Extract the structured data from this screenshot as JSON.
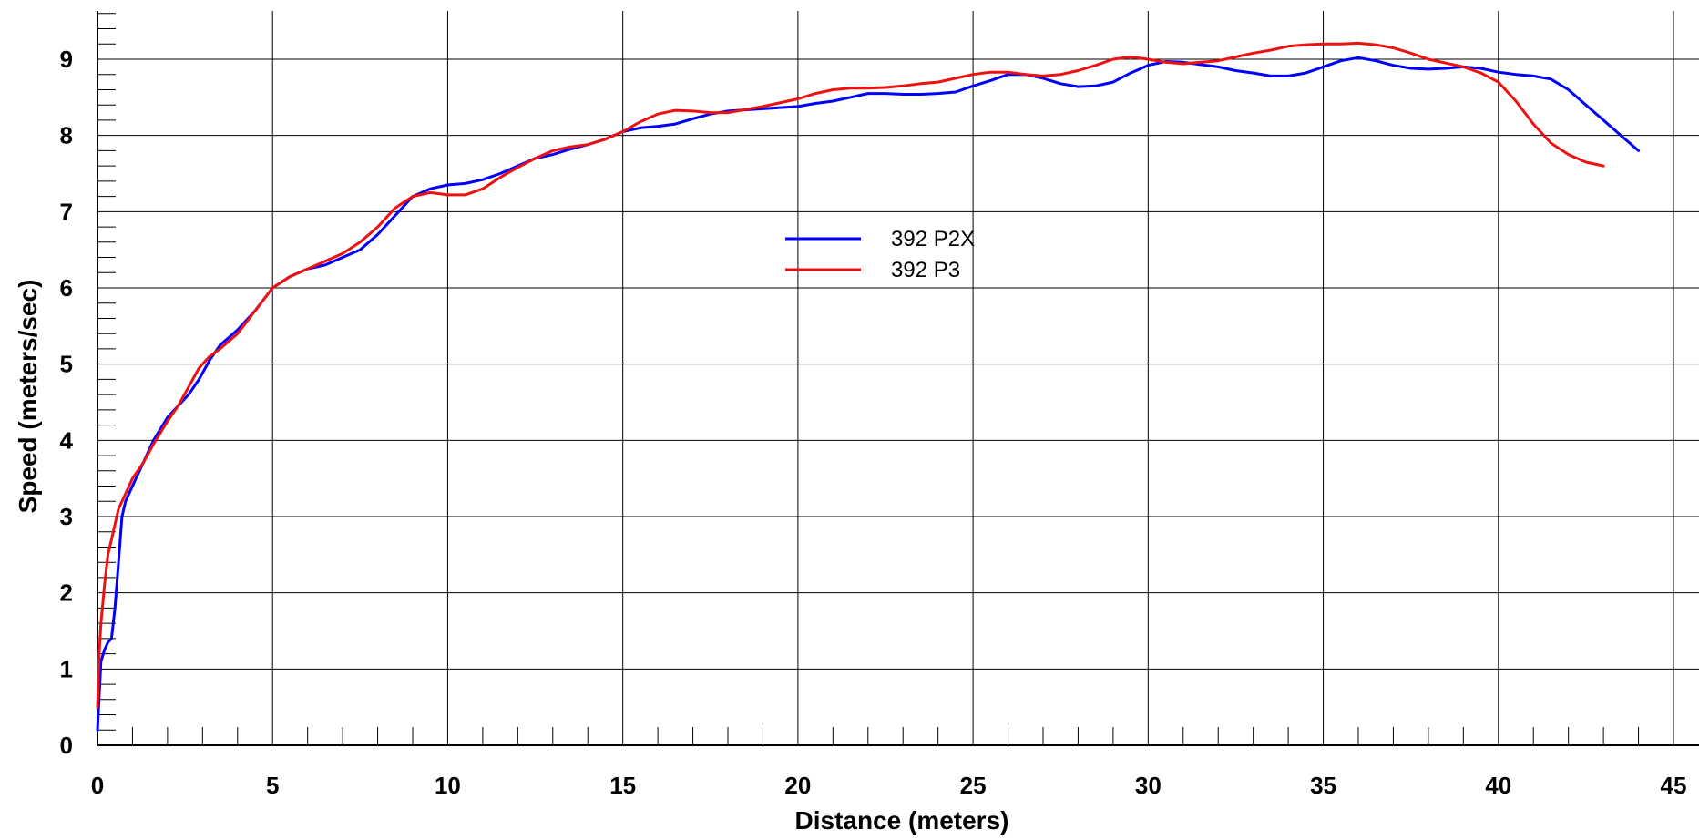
{
  "chart_data": {
    "type": "line",
    "title": "",
    "xlabel": "Distance (meters)",
    "ylabel": "Speed (meters/sec)",
    "xlim": [
      0,
      45
    ],
    "ylim": [
      0,
      9
    ],
    "x_ticks": [
      0,
      5,
      10,
      15,
      20,
      25,
      30,
      35,
      40,
      45
    ],
    "y_ticks": [
      0,
      1,
      2,
      3,
      4,
      5,
      6,
      7,
      8,
      9
    ],
    "grid": true,
    "legend_position": "center",
    "series": [
      {
        "name": "392 P2X",
        "color": "#0000ff",
        "x": [
          0,
          0.1,
          0.2,
          0.3,
          0.4,
          0.5,
          0.6,
          0.7,
          0.8,
          1.0,
          1.3,
          1.6,
          2.0,
          2.3,
          2.6,
          2.9,
          3.2,
          3.5,
          4.0,
          4.5,
          5.0,
          5.5,
          6.0,
          6.5,
          7.0,
          7.5,
          8.0,
          8.5,
          9.0,
          9.5,
          10.0,
          10.5,
          11.0,
          11.5,
          12.0,
          12.5,
          13.0,
          13.5,
          14.0,
          14.5,
          15.0,
          15.5,
          16.0,
          16.5,
          17.0,
          17.5,
          18.0,
          19.0,
          20.0,
          20.5,
          21.0,
          21.5,
          22.0,
          22.5,
          23.0,
          23.5,
          24.0,
          24.5,
          25.0,
          25.5,
          26.0,
          26.5,
          27.0,
          27.5,
          28.0,
          28.5,
          29.0,
          29.5,
          30.0,
          30.5,
          31.0,
          31.5,
          32.0,
          32.5,
          33.0,
          33.5,
          34.0,
          34.5,
          35.0,
          35.5,
          36.0,
          36.5,
          37.0,
          37.5,
          38.0,
          38.5,
          39.0,
          39.5,
          40.0,
          40.5,
          41.0,
          41.5,
          42.0,
          42.5,
          43.0,
          43.5,
          44.0
        ],
        "y": [
          0.2,
          1.1,
          1.25,
          1.35,
          1.4,
          1.8,
          2.4,
          3.0,
          3.2,
          3.4,
          3.7,
          4.0,
          4.3,
          4.45,
          4.6,
          4.8,
          5.05,
          5.25,
          5.45,
          5.7,
          6.0,
          6.15,
          6.25,
          6.3,
          6.4,
          6.5,
          6.7,
          6.95,
          7.2,
          7.3,
          7.35,
          7.37,
          7.42,
          7.5,
          7.6,
          7.7,
          7.75,
          7.82,
          7.88,
          7.95,
          8.05,
          8.1,
          8.12,
          8.15,
          8.22,
          8.28,
          8.32,
          8.35,
          8.38,
          8.42,
          8.45,
          8.5,
          8.55,
          8.55,
          8.54,
          8.54,
          8.55,
          8.57,
          8.65,
          8.72,
          8.8,
          8.8,
          8.75,
          8.68,
          8.64,
          8.65,
          8.7,
          8.82,
          8.92,
          8.97,
          8.96,
          8.93,
          8.9,
          8.85,
          8.82,
          8.78,
          8.78,
          8.82,
          8.9,
          8.98,
          9.02,
          8.98,
          8.92,
          8.88,
          8.87,
          8.88,
          8.9,
          8.88,
          8.83,
          8.8,
          8.78,
          8.74,
          8.6,
          8.4,
          8.2,
          8.0,
          7.8
        ]
      },
      {
        "name": "392 P3",
        "color": "#ee1111",
        "x": [
          0,
          0.05,
          0.1,
          0.2,
          0.3,
          0.4,
          0.5,
          0.6,
          0.8,
          1.0,
          1.3,
          1.6,
          2.0,
          2.3,
          2.6,
          2.9,
          3.2,
          3.5,
          4.0,
          4.5,
          5.0,
          5.5,
          6.0,
          6.5,
          7.0,
          7.5,
          8.0,
          8.5,
          9.0,
          9.5,
          10.0,
          10.5,
          11.0,
          11.5,
          12.0,
          12.5,
          13.0,
          13.5,
          14.0,
          14.5,
          15.0,
          15.5,
          16.0,
          16.5,
          17.0,
          17.5,
          18.0,
          19.0,
          20.0,
          20.5,
          21.0,
          21.5,
          22.0,
          22.5,
          23.0,
          23.5,
          24.0,
          24.5,
          25.0,
          25.5,
          26.0,
          26.5,
          27.0,
          27.5,
          28.0,
          28.5,
          29.0,
          29.5,
          30.0,
          30.5,
          31.0,
          31.5,
          32.0,
          32.5,
          33.0,
          33.5,
          34.0,
          34.5,
          35.0,
          35.5,
          36.0,
          36.5,
          37.0,
          37.5,
          38.0,
          38.5,
          39.0,
          39.5,
          40.0,
          40.5,
          41.0,
          41.5,
          42.0,
          42.5,
          43.0
        ],
        "y": [
          0.5,
          1.2,
          1.6,
          2.1,
          2.5,
          2.7,
          2.9,
          3.1,
          3.3,
          3.5,
          3.7,
          3.95,
          4.25,
          4.45,
          4.7,
          4.95,
          5.1,
          5.2,
          5.4,
          5.7,
          6.0,
          6.15,
          6.25,
          6.35,
          6.45,
          6.6,
          6.8,
          7.05,
          7.2,
          7.25,
          7.22,
          7.22,
          7.3,
          7.45,
          7.58,
          7.7,
          7.8,
          7.85,
          7.88,
          7.95,
          8.05,
          8.18,
          8.28,
          8.33,
          8.32,
          8.3,
          8.3,
          8.38,
          8.48,
          8.55,
          8.6,
          8.62,
          8.62,
          8.63,
          8.65,
          8.68,
          8.7,
          8.75,
          8.8,
          8.83,
          8.83,
          8.8,
          8.78,
          8.8,
          8.85,
          8.92,
          9.0,
          9.03,
          9.0,
          8.96,
          8.94,
          8.96,
          8.98,
          9.03,
          9.08,
          9.12,
          9.17,
          9.19,
          9.2,
          9.2,
          9.21,
          9.19,
          9.15,
          9.08,
          9.0,
          8.95,
          8.9,
          8.82,
          8.7,
          8.45,
          8.15,
          7.9,
          7.75,
          7.65,
          7.6
        ]
      }
    ]
  }
}
